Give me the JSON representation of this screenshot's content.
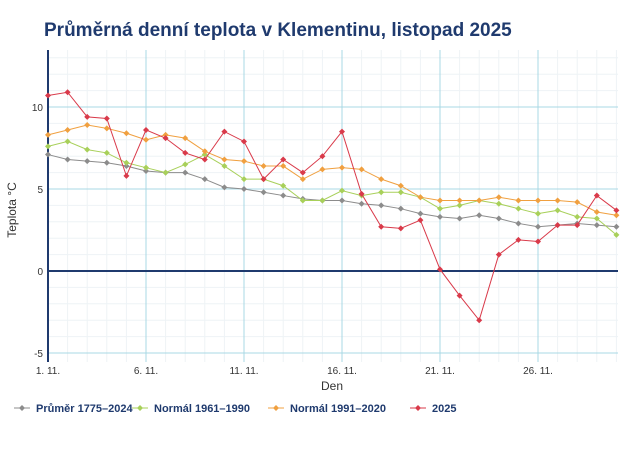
{
  "chart_data": {
    "type": "line",
    "title": "Průměrná denní teplota v Klementinu, listopad 2025",
    "xlabel": "Den",
    "ylabel": "Teplota °C",
    "ylim": [
      -5,
      13.5
    ],
    "xlim": [
      1,
      30
    ],
    "grid": true,
    "legend": "bottom",
    "x": [
      1,
      2,
      3,
      4,
      5,
      6,
      7,
      8,
      9,
      10,
      11,
      12,
      13,
      14,
      15,
      16,
      17,
      18,
      19,
      20,
      21,
      22,
      23,
      24,
      25,
      26,
      27,
      28,
      29,
      30
    ],
    "x_ticks": [
      {
        "value": 1,
        "label": "1. 11."
      },
      {
        "value": 6,
        "label": "6. 11."
      },
      {
        "value": 11,
        "label": "11. 11."
      },
      {
        "value": 16,
        "label": "16. 11."
      },
      {
        "value": 21,
        "label": "21. 11."
      },
      {
        "value": 26,
        "label": "26. 11."
      }
    ],
    "y_ticks": [
      {
        "value": -5,
        "label": "-5"
      },
      {
        "value": 0,
        "label": "0"
      },
      {
        "value": 5,
        "label": "5"
      },
      {
        "value": 10,
        "label": "10"
      }
    ],
    "series": [
      {
        "name": "Průměr 1775–2024",
        "color": "#8c8c8c",
        "values": [
          7.1,
          6.8,
          6.7,
          6.6,
          6.4,
          6.1,
          6.0,
          6.0,
          5.6,
          5.1,
          5.0,
          4.8,
          4.6,
          4.4,
          4.3,
          4.3,
          4.1,
          4.0,
          3.8,
          3.5,
          3.3,
          3.2,
          3.4,
          3.2,
          2.9,
          2.7,
          2.8,
          2.9,
          2.8,
          2.7
        ]
      },
      {
        "name": "Normál 1961–1990",
        "color": "#a8d05a",
        "values": [
          7.6,
          7.9,
          7.4,
          7.2,
          6.6,
          6.3,
          6.0,
          6.5,
          7.1,
          6.4,
          5.6,
          5.6,
          5.2,
          4.3,
          4.3,
          4.9,
          4.6,
          4.8,
          4.8,
          4.5,
          3.8,
          4.0,
          4.3,
          4.1,
          3.8,
          3.5,
          3.7,
          3.3,
          3.2,
          2.2
        ]
      },
      {
        "name": "Normál 1991–2020",
        "color": "#f0a040",
        "values": [
          8.3,
          8.6,
          8.9,
          8.7,
          8.4,
          8.0,
          8.3,
          8.1,
          7.3,
          6.8,
          6.7,
          6.4,
          6.4,
          5.6,
          6.2,
          6.3,
          6.2,
          5.6,
          5.2,
          4.5,
          4.3,
          4.3,
          4.3,
          4.5,
          4.3,
          4.3,
          4.3,
          4.2,
          3.6,
          3.4
        ]
      },
      {
        "name": "2025",
        "color": "#d93a4a",
        "values": [
          10.7,
          10.9,
          9.4,
          9.3,
          5.8,
          8.6,
          8.1,
          7.2,
          6.8,
          8.5,
          7.9,
          5.6,
          6.8,
          6.0,
          7.0,
          8.5,
          4.7,
          2.7,
          2.6,
          3.1,
          0.1,
          -1.5,
          -3.0,
          1.0,
          1.9,
          1.8,
          2.8,
          2.8,
          4.6,
          3.7
        ]
      }
    ]
  }
}
